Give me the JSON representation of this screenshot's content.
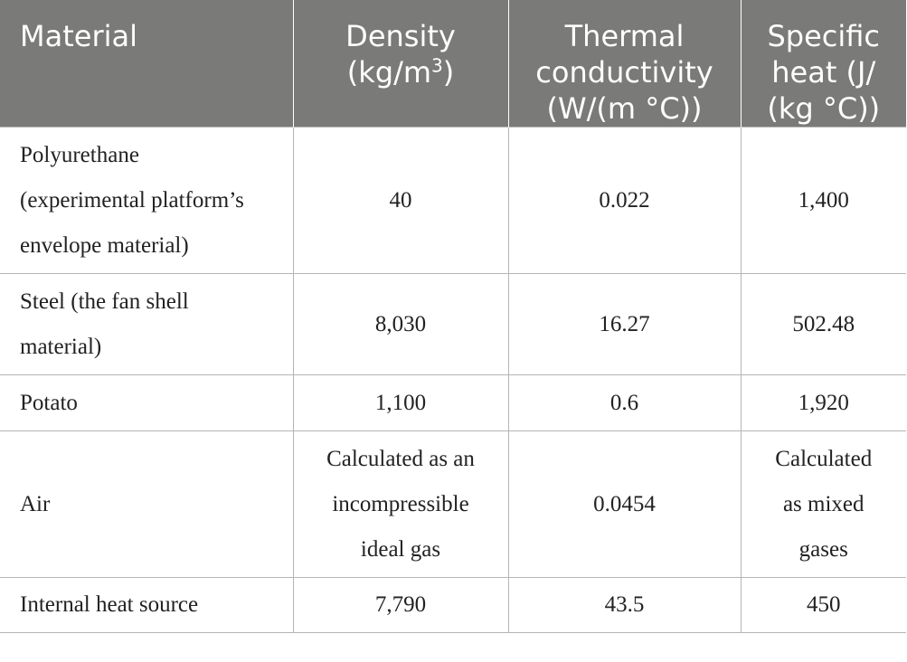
{
  "table": {
    "headers": {
      "material": "Material",
      "density": [
        "Density",
        "(kg/m",
        "3",
        ")"
      ],
      "thermal": [
        "Thermal",
        "conductivity",
        "(W/(m °C))"
      ],
      "specific": [
        "Specific",
        "heat (J/",
        "(kg °C))"
      ]
    },
    "rows": [
      {
        "material": [
          "Polyurethane",
          "(experimental platform’s",
          "envelope material)"
        ],
        "density": [
          "40"
        ],
        "thermal": [
          "0.022"
        ],
        "specific": [
          "1,400"
        ]
      },
      {
        "material": [
          "Steel (the fan shell",
          "material)"
        ],
        "density": [
          "8,030"
        ],
        "thermal": [
          "16.27"
        ],
        "specific": [
          "502.48"
        ]
      },
      {
        "material": [
          "Potato"
        ],
        "density": [
          "1,100"
        ],
        "thermal": [
          "0.6"
        ],
        "specific": [
          "1,920"
        ]
      },
      {
        "material": [
          "Air"
        ],
        "density": [
          "Calculated as an",
          "incompressible",
          "ideal gas"
        ],
        "thermal": [
          "0.0454"
        ],
        "specific": [
          "Calculated",
          "as mixed",
          "gases"
        ]
      },
      {
        "material": [
          "Internal heat source"
        ],
        "density": [
          "7,790"
        ],
        "thermal": [
          "43.5"
        ],
        "specific": [
          "450"
        ]
      }
    ]
  }
}
